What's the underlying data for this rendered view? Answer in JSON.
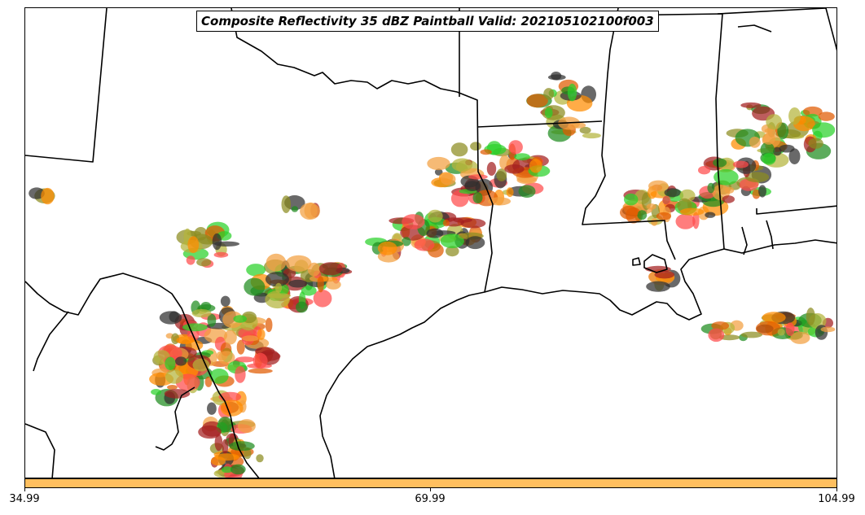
{
  "title": "Composite Reflectivity 35 dBZ Paintball Valid: 202105102100f003",
  "field": {
    "variable": "Composite Reflectivity",
    "threshold_dbz": 35,
    "product": "Paintball",
    "valid": "202105102100",
    "forecast_hour": "f003"
  },
  "colorbar": {
    "color": "#ffbf5f",
    "ticks": [
      "34.99",
      "69.99",
      "104.99"
    ]
  },
  "member_colors": [
    "#ff4b4b",
    "#a31f1f",
    "#ff8c00",
    "#2ad12a",
    "#1e8c1e",
    "#8c8c20",
    "#2f2f2f",
    "#e05a00",
    "#f2a040",
    "#b4b43c"
  ],
  "map": {
    "region": "South-central United States",
    "boundaries": [
      "state",
      "international",
      "coastline"
    ]
  }
}
